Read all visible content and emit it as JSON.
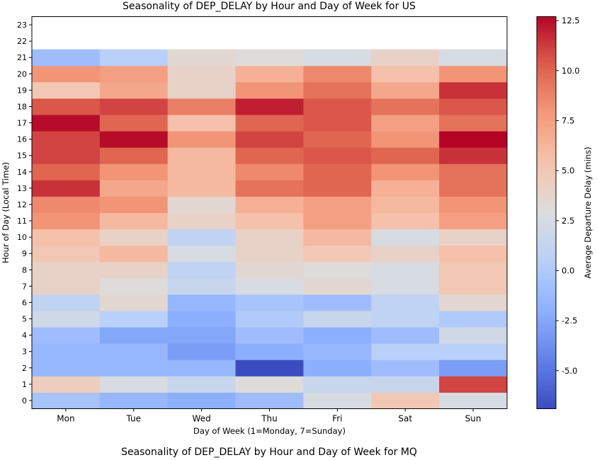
{
  "chart_data": [
    {
      "type": "heatmap",
      "title": "Seasonality of DEP_DELAY by Hour and Day of Week for US",
      "xlabel": "Day of Week (1=Monday, 7=Sunday)",
      "ylabel": "Hour of Day (Local Time)",
      "colorbar_label": "Average Departure Delay (mins)",
      "colormap": "coolwarm",
      "vmin": -6.9,
      "vmax": 12.7,
      "colorbar_ticks": [
        "-5.0",
        "-2.5",
        "0.0",
        "2.5",
        "5.0",
        "7.5",
        "10.0",
        "12.5"
      ],
      "colorbar_tick_values": [
        -5.0,
        -2.5,
        0.0,
        2.5,
        5.0,
        7.5,
        10.0,
        12.5
      ],
      "x_categories": [
        "Mon",
        "Tue",
        "Wed",
        "Thu",
        "Fri",
        "Sat",
        "Sun"
      ],
      "y_ticks": [
        "0",
        "1",
        "2",
        "3",
        "4",
        "5",
        "6",
        "7",
        "8",
        "9",
        "10",
        "11",
        "12",
        "13",
        "14",
        "15",
        "16",
        "17",
        "18",
        "19",
        "20",
        "21",
        "22",
        "23"
      ],
      "hours_with_data": [
        0,
        21
      ],
      "values": [
        [
          -0.5,
          -1.5,
          -2.0,
          -1.0,
          2.5,
          5.0,
          2.5
        ],
        [
          4.5,
          2.5,
          1.5,
          3.0,
          1.5,
          1.5,
          11.0
        ],
        [
          -1.5,
          -1.5,
          -1.5,
          -6.9,
          -2.0,
          -1.0,
          -3.0
        ],
        [
          -1.5,
          -1.5,
          -3.0,
          -2.0,
          -1.5,
          0.5,
          0.5
        ],
        [
          -1.0,
          -2.5,
          -2.5,
          -1.0,
          -2.0,
          -1.0,
          2.0
        ],
        [
          2.0,
          0.5,
          -2.0,
          0.0,
          1.5,
          1.0,
          0.0
        ],
        [
          1.0,
          3.5,
          -1.5,
          -0.5,
          -1.0,
          1.0,
          3.5
        ],
        [
          4.0,
          3.0,
          1.5,
          2.5,
          3.5,
          2.5,
          5.0
        ],
        [
          4.0,
          4.0,
          1.0,
          3.5,
          3.0,
          2.5,
          5.0
        ],
        [
          5.0,
          6.0,
          2.5,
          4.0,
          5.0,
          4.0,
          5.5
        ],
        [
          5.5,
          4.0,
          1.0,
          4.0,
          6.0,
          2.5,
          4.0
        ],
        [
          8.0,
          6.0,
          4.0,
          5.5,
          7.5,
          5.5,
          7.5
        ],
        [
          8.5,
          8.0,
          3.5,
          6.5,
          7.5,
          6.0,
          8.0
        ],
        [
          11.5,
          7.0,
          6.0,
          9.5,
          10.0,
          6.5,
          9.5
        ],
        [
          10.0,
          8.0,
          6.0,
          8.5,
          10.0,
          8.0,
          9.5
        ],
        [
          11.0,
          10.0,
          6.0,
          10.0,
          10.5,
          10.0,
          11.5
        ],
        [
          11.0,
          12.5,
          8.0,
          11.0,
          10.0,
          8.0,
          12.7
        ],
        [
          12.5,
          10.0,
          5.5,
          10.0,
          10.5,
          7.5,
          9.5
        ],
        [
          10.5,
          11.0,
          9.0,
          12.0,
          10.5,
          9.5,
          10.5
        ],
        [
          5.0,
          7.0,
          4.0,
          8.0,
          9.5,
          7.0,
          11.5
        ],
        [
          8.0,
          7.5,
          4.0,
          6.5,
          8.5,
          5.5,
          8.0
        ],
        [
          -1.0,
          0.5,
          3.5,
          3.0,
          2.5,
          4.0,
          2.5
        ]
      ]
    },
    {
      "type": "heatmap",
      "title": "Seasonality of DEP_DELAY by Hour and Day of Week for MQ"
    }
  ]
}
